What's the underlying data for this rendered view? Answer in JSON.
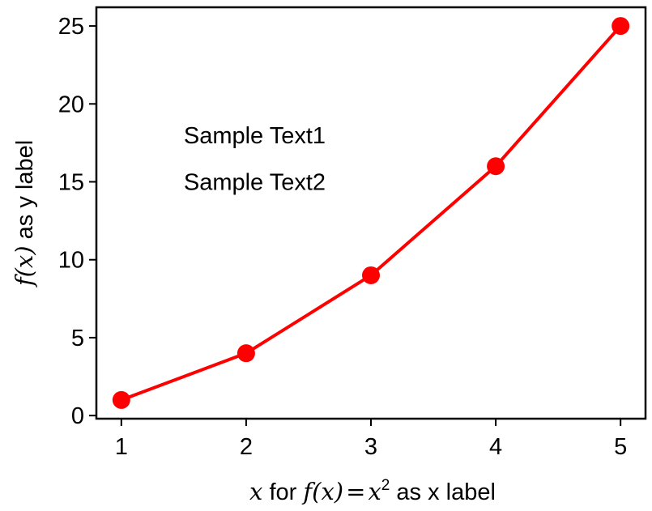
{
  "chart_data": {
    "type": "line",
    "x": [
      1,
      2,
      3,
      4,
      5
    ],
    "series": [
      {
        "name": "f(x) = x^2",
        "values": [
          1,
          4,
          9,
          16,
          25
        ],
        "color": "#ff0000",
        "marker": "circle"
      }
    ],
    "xticks": [
      1,
      2,
      3,
      4,
      5
    ],
    "yticks": [
      0,
      5,
      10,
      15,
      20,
      25
    ],
    "xlim": [
      0.8,
      5.2
    ],
    "ylim": [
      -0.2,
      26.2
    ],
    "xlabel": {
      "var": "x",
      "pre": " for ",
      "f": "f",
      "paren_open": "(",
      "arg": "x",
      "paren_close": ")",
      "eq": "=",
      "base": "x",
      "exp": "2",
      "post": " as x label"
    },
    "ylabel": {
      "f": "f",
      "paren_open": "(",
      "arg": "x",
      "paren_close": ")",
      "post": " as y label"
    },
    "annotations": [
      {
        "text": "Sample Text1",
        "x": 1.5,
        "y": 18
      },
      {
        "text": "Sample Text2",
        "x": 1.5,
        "y": 15
      }
    ],
    "grid": false
  }
}
